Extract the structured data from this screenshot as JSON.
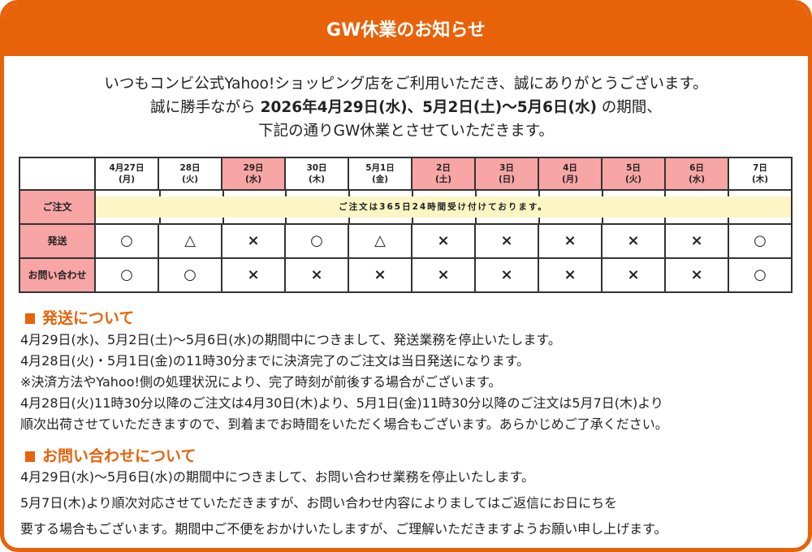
{
  "title": "GW休業のお知らせ",
  "intro": {
    "line1": "いつもコンビ公式Yahoo!ショッピング店をご利用いただき、誠にありがとうございます。",
    "line2_pre": "誠に勝手ながら",
    "line2_bold": "2026年4月29日(水)、5月2日(土)～5月6日(水)",
    "line2_post": "の期間、",
    "line3": "下記の通りGW休業とさせていただきます。"
  },
  "schedule": {
    "columns": [
      {
        "date": "4月27日",
        "dow": "(月)",
        "holiday": false
      },
      {
        "date": "28日",
        "dow": "(火)",
        "holiday": false
      },
      {
        "date": "29日",
        "dow": "(水)",
        "holiday": true
      },
      {
        "date": "30日",
        "dow": "(木)",
        "holiday": false
      },
      {
        "date": "5月1日",
        "dow": "(金)",
        "holiday": false
      },
      {
        "date": "2日",
        "dow": "(土)",
        "holiday": true
      },
      {
        "date": "3日",
        "dow": "(日)",
        "holiday": true
      },
      {
        "date": "4日",
        "dow": "(月)",
        "holiday": true
      },
      {
        "date": "5日",
        "dow": "(火)",
        "holiday": true
      },
      {
        "date": "6日",
        "dow": "(水)",
        "holiday": true
      },
      {
        "date": "7日",
        "dow": "(木)",
        "holiday": false
      }
    ],
    "order_label": "ご注文",
    "order_note": "ご注文は365日24時間受け付けております。",
    "rows": [
      {
        "label": "発送",
        "values": [
          "○",
          "△",
          "×",
          "○",
          "△",
          "×",
          "×",
          "×",
          "×",
          "×",
          "○"
        ]
      },
      {
        "label": "お問い合わせ",
        "values": [
          "○",
          "○",
          "×",
          "×",
          "×",
          "×",
          "×",
          "×",
          "×",
          "×",
          "○"
        ]
      }
    ]
  },
  "shipping": {
    "heading": "発送について",
    "lines": [
      "4月29日(水)、5月2日(土)～5月6日(水)の期間中につきまして、発送業務を停止いたします。",
      "4月28日(火)・5月1日(金)の11時30分までに決済完了のご注文は当日発送になります。",
      "※決済方法やYahoo!側の処理状況により、完了時刻が前後する場合がございます。",
      "4月28日(火)11時30分以降のご注文は4月30日(木)より、5月1日(金)11時30分以降のご注文は5月7日(木)より",
      "順次出荷させていただきますので、到着までお時間をいただく場合もございます。あらかじめご了承ください。"
    ]
  },
  "inquiry": {
    "heading": "お問い合わせについて",
    "lines": [
      "4月29日(水)～5月6日(水)の期間中につきまして、お問い合わせ業務を停止いたします。",
      "5月7日(木)より順次対応させていただきますが、お問い合わせ内容によりましてはご返信にお日にちを",
      "要する場合もございます。期間中ご不便をおかけいたしますが、ご理解いただきますようお願い申し上げます。"
    ]
  },
  "colors": {
    "accent": "#E8620A",
    "holiday": "#F8A5A5",
    "note_band": "#FBF6C4"
  }
}
